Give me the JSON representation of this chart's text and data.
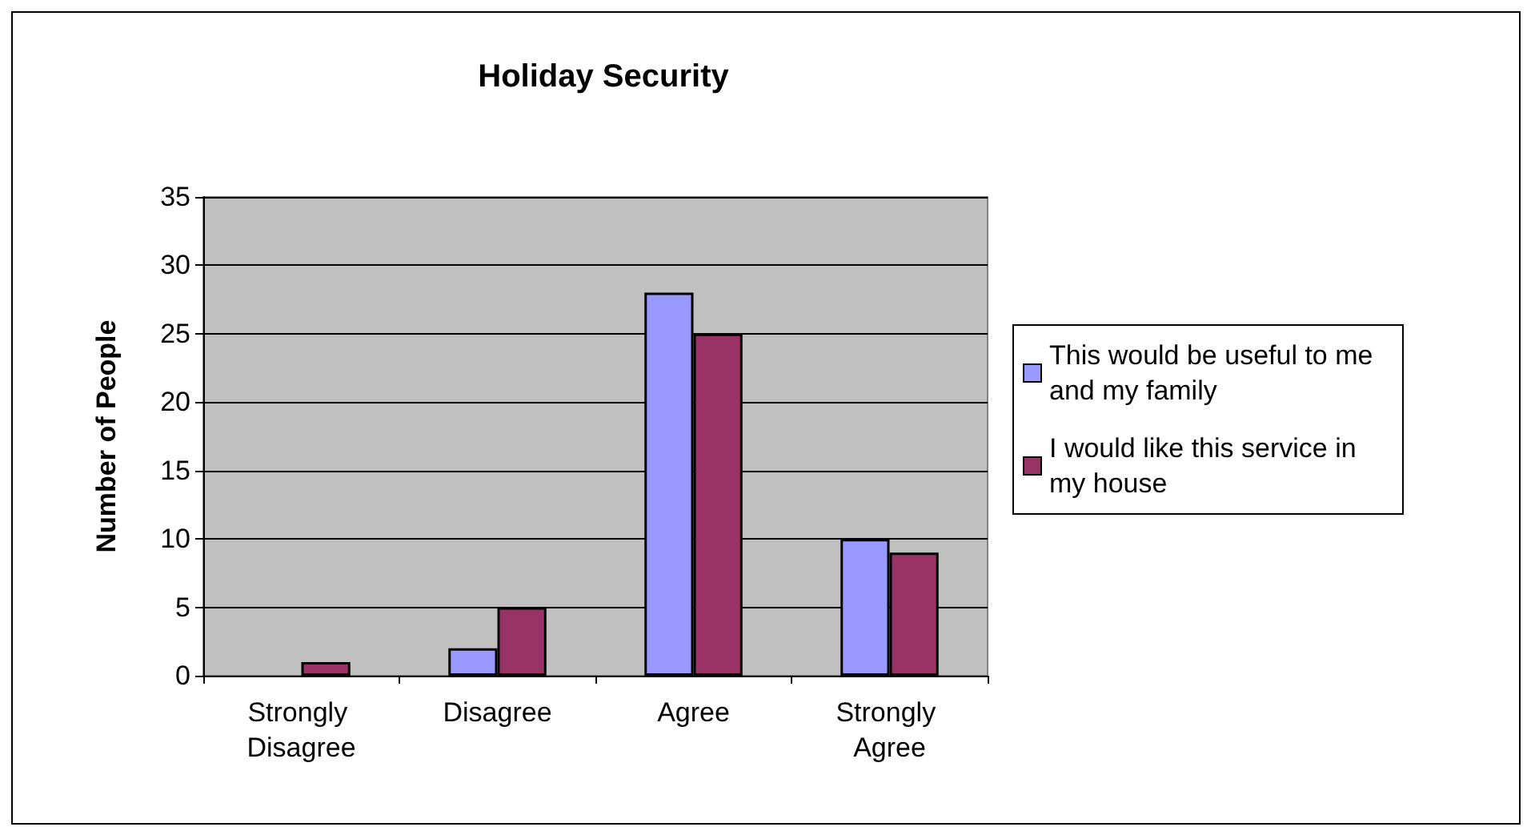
{
  "chart_data": {
    "type": "bar",
    "title": "Holiday Security",
    "ylabel": "Number of People",
    "categories": [
      "Strongly Disagree",
      "Disagree",
      "Agree",
      "Strongly Agree"
    ],
    "series": [
      {
        "name": "This would be useful to me and my family",
        "color": "#9999ff",
        "values": [
          0,
          2,
          28,
          10
        ]
      },
      {
        "name": "I would like this service in my house",
        "color": "#993366",
        "values": [
          1,
          5,
          25,
          9
        ]
      }
    ],
    "ylim": [
      0,
      35
    ],
    "yticks": [
      0,
      5,
      10,
      15,
      20,
      25,
      30,
      35
    ],
    "grid": "y",
    "legend": "right"
  }
}
